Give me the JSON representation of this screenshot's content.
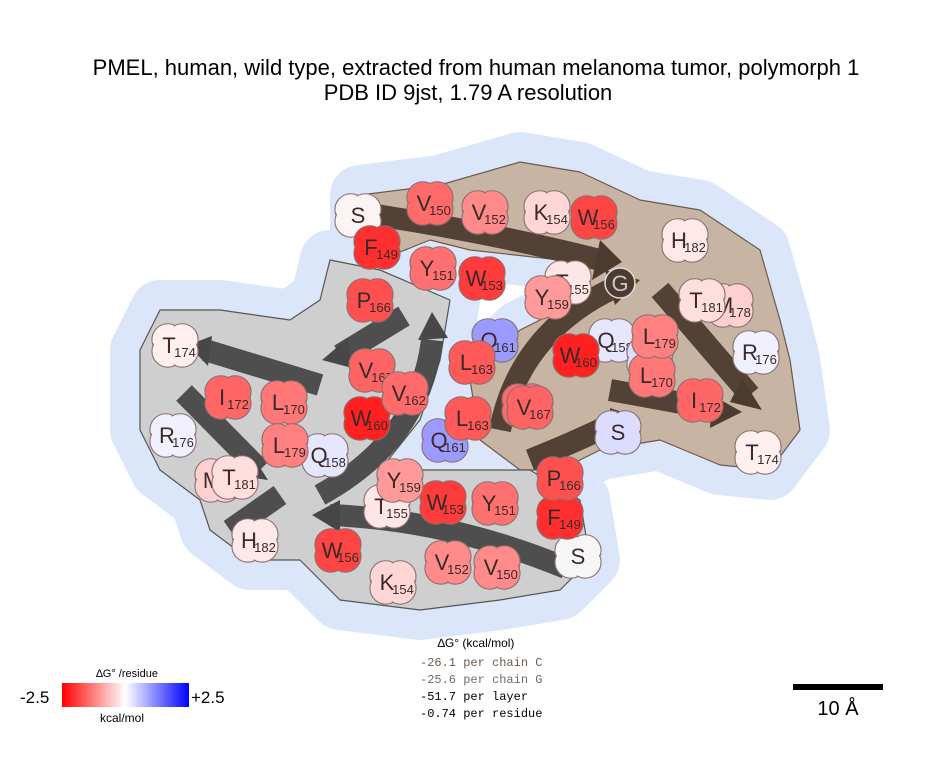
{
  "title": {
    "line1": "PMEL, human, wild type, extracted from human melanoma tumor, polymorph 1",
    "line2": "PDB ID 9jst, 1.79 A resolution"
  },
  "colors": {
    "halo": "#dbe6fa",
    "chainC_backbone": "#c8b4a2",
    "chainG_backbone": "#cfcfcf",
    "chainC_arrow": "#4d3b2f",
    "chainG_arrow": "#474747",
    "glycine_node": "#4d3b2f"
  },
  "residues": [
    {
      "chain": "C",
      "letter": "S",
      "num": "",
      "color": "#fcf3f3"
    },
    {
      "chain": "C",
      "letter": "F",
      "num": "149",
      "color": "#ff2f2f"
    },
    {
      "chain": "C",
      "letter": "V",
      "num": "150",
      "color": "#ff6a6a"
    },
    {
      "chain": "C",
      "letter": "Y",
      "num": "151",
      "color": "#ff7070"
    },
    {
      "chain": "C",
      "letter": "V",
      "num": "152",
      "color": "#ff8a8a"
    },
    {
      "chain": "C",
      "letter": "W",
      "num": "153",
      "color": "#ff3b3b"
    },
    {
      "chain": "C",
      "letter": "K",
      "num": "154",
      "color": "#ffd6d6"
    },
    {
      "chain": "C",
      "letter": "T",
      "num": "155",
      "color": "#ffe6e6"
    },
    {
      "chain": "C",
      "letter": "W",
      "num": "156",
      "color": "#ff4444"
    },
    {
      "chain": "C",
      "letter": "G",
      "num": "",
      "color": "#4d3b2f"
    },
    {
      "chain": "C",
      "letter": "Q",
      "num": "158",
      "color": "#e6e6ff"
    },
    {
      "chain": "C",
      "letter": "Y",
      "num": "159",
      "color": "#ff9a9a"
    },
    {
      "chain": "C",
      "letter": "W",
      "num": "160",
      "color": "#ff2020"
    },
    {
      "chain": "C",
      "letter": "Q",
      "num": "161",
      "color": "#9b9bff"
    },
    {
      "chain": "C",
      "letter": "V",
      "num": "162",
      "color": "#ff6a6a"
    },
    {
      "chain": "C",
      "letter": "L",
      "num": "163",
      "color": "#ff5959"
    },
    {
      "chain": "C",
      "letter": "S",
      "num": "",
      "color": "#dcdcff"
    },
    {
      "chain": "C",
      "letter": "P",
      "num": "166",
      "color": "#ff5050"
    },
    {
      "chain": "C",
      "letter": "V",
      "num": "167",
      "color": "#ff6464"
    },
    {
      "chain": "C",
      "letter": "L",
      "num": "170",
      "color": "#ff7777"
    },
    {
      "chain": "C",
      "letter": "I",
      "num": "172",
      "color": "#ff6666"
    },
    {
      "chain": "C",
      "letter": "T",
      "num": "174",
      "color": "#fff0f0"
    },
    {
      "chain": "C",
      "letter": "R",
      "num": "176",
      "color": "#f0f0ff"
    },
    {
      "chain": "C",
      "letter": "M",
      "num": "178",
      "color": "#ffd0d0"
    },
    {
      "chain": "C",
      "letter": "L",
      "num": "179",
      "color": "#ff8080"
    },
    {
      "chain": "C",
      "letter": "T",
      "num": "181",
      "color": "#ffdede"
    },
    {
      "chain": "C",
      "letter": "H",
      "num": "182",
      "color": "#ffe8e8"
    },
    {
      "chain": "G",
      "letter": "S",
      "num": "",
      "color": "#f6f6f6"
    },
    {
      "chain": "G",
      "letter": "F",
      "num": "149",
      "color": "#ff2f2f"
    },
    {
      "chain": "G",
      "letter": "V",
      "num": "150",
      "color": "#ff8a8a"
    },
    {
      "chain": "G",
      "letter": "Y",
      "num": "151",
      "color": "#ff7070"
    },
    {
      "chain": "G",
      "letter": "V",
      "num": "152",
      "color": "#ff8a8a"
    },
    {
      "chain": "G",
      "letter": "W",
      "num": "153",
      "color": "#ff3b3b"
    },
    {
      "chain": "G",
      "letter": "K",
      "num": "154",
      "color": "#ffd6d6"
    },
    {
      "chain": "G",
      "letter": "T",
      "num": "155",
      "color": "#ffe6e6"
    },
    {
      "chain": "G",
      "letter": "W",
      "num": "156",
      "color": "#ff4444"
    },
    {
      "chain": "G",
      "letter": "Q",
      "num": "158",
      "color": "#e6e6ff"
    },
    {
      "chain": "G",
      "letter": "Y",
      "num": "159",
      "color": "#ff9a9a"
    },
    {
      "chain": "G",
      "letter": "W",
      "num": "160",
      "color": "#ff2020"
    },
    {
      "chain": "G",
      "letter": "Q",
      "num": "161",
      "color": "#9b9bff"
    },
    {
      "chain": "G",
      "letter": "V",
      "num": "162",
      "color": "#ff6a6a"
    },
    {
      "chain": "G",
      "letter": "L",
      "num": "163",
      "color": "#ff5959"
    },
    {
      "chain": "G",
      "letter": "S",
      "num": "",
      "color": "#dcdcff"
    },
    {
      "chain": "G",
      "letter": "P",
      "num": "166",
      "color": "#ff5050"
    },
    {
      "chain": "G",
      "letter": "V",
      "num": "167",
      "color": "#ff6464"
    },
    {
      "chain": "G",
      "letter": "L",
      "num": "170",
      "color": "#ff7777"
    },
    {
      "chain": "G",
      "letter": "I",
      "num": "172",
      "color": "#ff6666"
    },
    {
      "chain": "G",
      "letter": "T",
      "num": "174",
      "color": "#fff0f0"
    },
    {
      "chain": "G",
      "letter": "R",
      "num": "176",
      "color": "#f0f0ff"
    },
    {
      "chain": "G",
      "letter": "M",
      "num": "178",
      "color": "#ffd0d0"
    },
    {
      "chain": "G",
      "letter": "L",
      "num": "179",
      "color": "#ff8080"
    },
    {
      "chain": "G",
      "letter": "T",
      "num": "181",
      "color": "#ffdede"
    },
    {
      "chain": "G",
      "letter": "H",
      "num": "182",
      "color": "#ffe8e8"
    }
  ],
  "energy_legend": {
    "title": "∆G° (kcal/mol)",
    "lines": [
      {
        "text": "-26.1 per chain C",
        "color": "#6b5a4d"
      },
      {
        "text": "-25.6 per chain G",
        "color": "#6b6b6b"
      },
      {
        "text": "-51.7 per layer",
        "color": "#000000"
      },
      {
        "text": "-0.74 per residue",
        "color": "#000000"
      }
    ]
  },
  "colorbar": {
    "title": "∆G° /residue",
    "min_label": "-2.5",
    "max_label": "+2.5",
    "unit": "kcal/mol"
  },
  "scale_bar": {
    "label": "10 Å"
  }
}
